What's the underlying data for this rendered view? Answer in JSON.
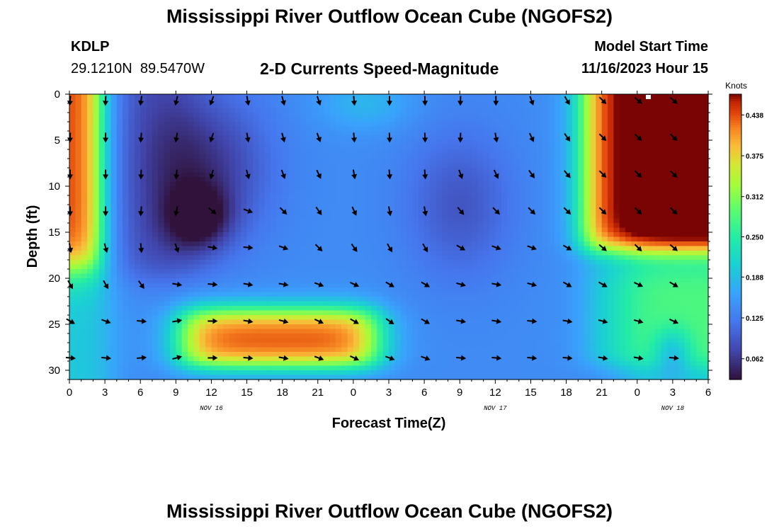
{
  "header": {
    "title": "Mississippi River Outflow Ocean Cube (NGOFS2)",
    "station": "KDLP",
    "coords": "29.1210N  89.5470W",
    "chart_title": "2-D Currents Speed-Magnitude",
    "model_start_label": "Model Start Time",
    "model_start_value": "11/16/2023 Hour 15"
  },
  "footer": {
    "title": "Mississippi River Outflow Ocean Cube (NGOFS2)"
  },
  "chart_data": {
    "type": "heatmap",
    "title": "2-D Currents Speed-Magnitude",
    "xlabel": "Forecast Time(Z)",
    "ylabel": "Depth (ft)",
    "x_range_hours": [
      0,
      54
    ],
    "y_range_ft": [
      0,
      31
    ],
    "x_tick_labels": [
      "0",
      "3",
      "6",
      "9",
      "12",
      "15",
      "18",
      "21",
      "0",
      "3",
      "6",
      "9",
      "12",
      "15",
      "18",
      "21",
      "0",
      "3",
      "6"
    ],
    "y_ticks": [
      0,
      5,
      10,
      15,
      20,
      25,
      30
    ],
    "date_labels": [
      {
        "hour": 12,
        "label": "NOV 16"
      },
      {
        "hour": 36,
        "label": "NOV 17"
      },
      {
        "hour": 51,
        "label": "NOV 18"
      }
    ],
    "colorbar": {
      "unit": "Knots",
      "ticks": [
        "0.438",
        "0.375",
        "0.312",
        "0.250",
        "0.188",
        "0.125",
        "0.062"
      ],
      "range": [
        0.03,
        0.47
      ]
    },
    "vector_times_hours": [
      0,
      3,
      6,
      9,
      12,
      15,
      18,
      21,
      24,
      27,
      30,
      33,
      36,
      39,
      42,
      45,
      48,
      51
    ],
    "vector_depths_ft": [
      0.5,
      4.5,
      8.5,
      12.5,
      16.5,
      20.5,
      24.5,
      28.5
    ],
    "vector_angles_deg": [
      [
        95,
        93,
        98,
        103,
        110,
        80,
        75,
        72,
        85,
        90,
        88,
        92,
        90,
        70,
        60,
        45,
        40,
        42
      ],
      [
        92,
        90,
        95,
        100,
        108,
        80,
        75,
        70,
        85,
        88,
        88,
        92,
        80,
        65,
        55,
        45,
        42,
        45
      ],
      [
        90,
        90,
        92,
        95,
        105,
        75,
        70,
        65,
        80,
        85,
        85,
        70,
        65,
        55,
        50,
        45,
        45,
        45
      ],
      [
        90,
        90,
        95,
        100,
        40,
        20,
        45,
        55,
        65,
        80,
        80,
        50,
        45,
        45,
        45,
        45,
        45,
        45
      ],
      [
        80,
        75,
        85,
        70,
        10,
        5,
        20,
        45,
        55,
        60,
        60,
        30,
        20,
        20,
        30,
        40,
        45,
        40
      ],
      [
        60,
        60,
        55,
        10,
        5,
        10,
        10,
        20,
        25,
        30,
        30,
        15,
        10,
        15,
        30,
        30,
        25,
        30
      ],
      [
        30,
        20,
        5,
        -10,
        0,
        10,
        15,
        25,
        30,
        35,
        30,
        10,
        10,
        5,
        10,
        15,
        15,
        25
      ],
      [
        5,
        5,
        -5,
        -15,
        0,
        5,
        10,
        20,
        25,
        20,
        20,
        5,
        5,
        5,
        5,
        10,
        10,
        5
      ]
    ]
  }
}
